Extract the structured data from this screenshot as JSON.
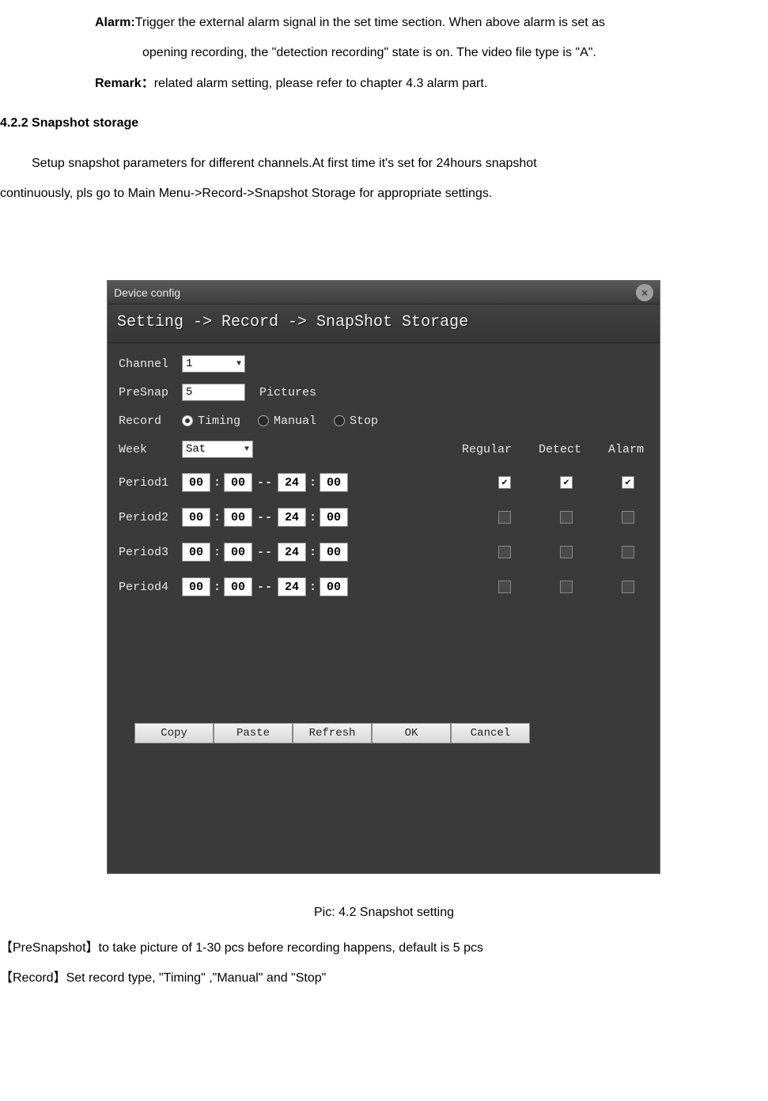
{
  "doc": {
    "alarm_label": "Alarm:",
    "alarm_line1": "Trigger the external alarm signal in the set time section. When above alarm is set as",
    "alarm_line2": "opening recording, the \"detection recording\" state is on. The video file type is \"A\".",
    "remark_label": "Remark：",
    "remark_text": "related alarm setting, please refer to chapter 4.3 alarm part.",
    "section_heading": "4.2.2 Snapshot storage",
    "intro_line1": "Setup snapshot parameters for different channels.At first time it's set for 24hours snapshot",
    "intro_line2": "continuously, pls go to Main Menu->Record->Snapshot Storage for appropriate settings.",
    "caption": "Pic: 4.2 Snapshot setting",
    "presnap_line": "【PreSnapshot】to take picture of 1-30 pcs before recording happens, default is 5 pcs",
    "record_line": "【Record】Set record type, \"Timing\" ,\"Manual\" and \"Stop\""
  },
  "window": {
    "title": "Device config",
    "breadcrumb": "Setting -> Record -> SnapShot Storage",
    "labels": {
      "channel": "Channel",
      "presnap": "PreSnap",
      "pictures": "Pictures",
      "record": "Record",
      "week": "Week",
      "regular": "Regular",
      "detect": "Detect",
      "alarm": "Alarm"
    },
    "channel_value": "1",
    "presnap_value": "5",
    "record_options": {
      "timing": "Timing",
      "manual": "Manual",
      "stop": "Stop"
    },
    "record_selected": "timing",
    "week_value": "Sat",
    "periods": [
      {
        "label": "Period1",
        "h1": "00",
        "m1": "00",
        "h2": "24",
        "m2": "00",
        "regular": true,
        "detect": true,
        "alarm": true,
        "style": "white"
      },
      {
        "label": "Period2",
        "h1": "00",
        "m1": "00",
        "h2": "24",
        "m2": "00",
        "regular": false,
        "detect": false,
        "alarm": false,
        "style": "dark"
      },
      {
        "label": "Period3",
        "h1": "00",
        "m1": "00",
        "h2": "24",
        "m2": "00",
        "regular": false,
        "detect": false,
        "alarm": false,
        "style": "dark"
      },
      {
        "label": "Period4",
        "h1": "00",
        "m1": "00",
        "h2": "24",
        "m2": "00",
        "regular": false,
        "detect": false,
        "alarm": false,
        "style": "dark"
      }
    ],
    "buttons": {
      "copy": "Copy",
      "paste": "Paste",
      "refresh": "Refresh",
      "ok": "OK",
      "cancel": "Cancel"
    }
  },
  "colors": {
    "window_bg": "#3a3a3a",
    "text_light": "#e8e8e8",
    "input_bg": "#ffffff",
    "button_bg": "#e8e8e8"
  }
}
